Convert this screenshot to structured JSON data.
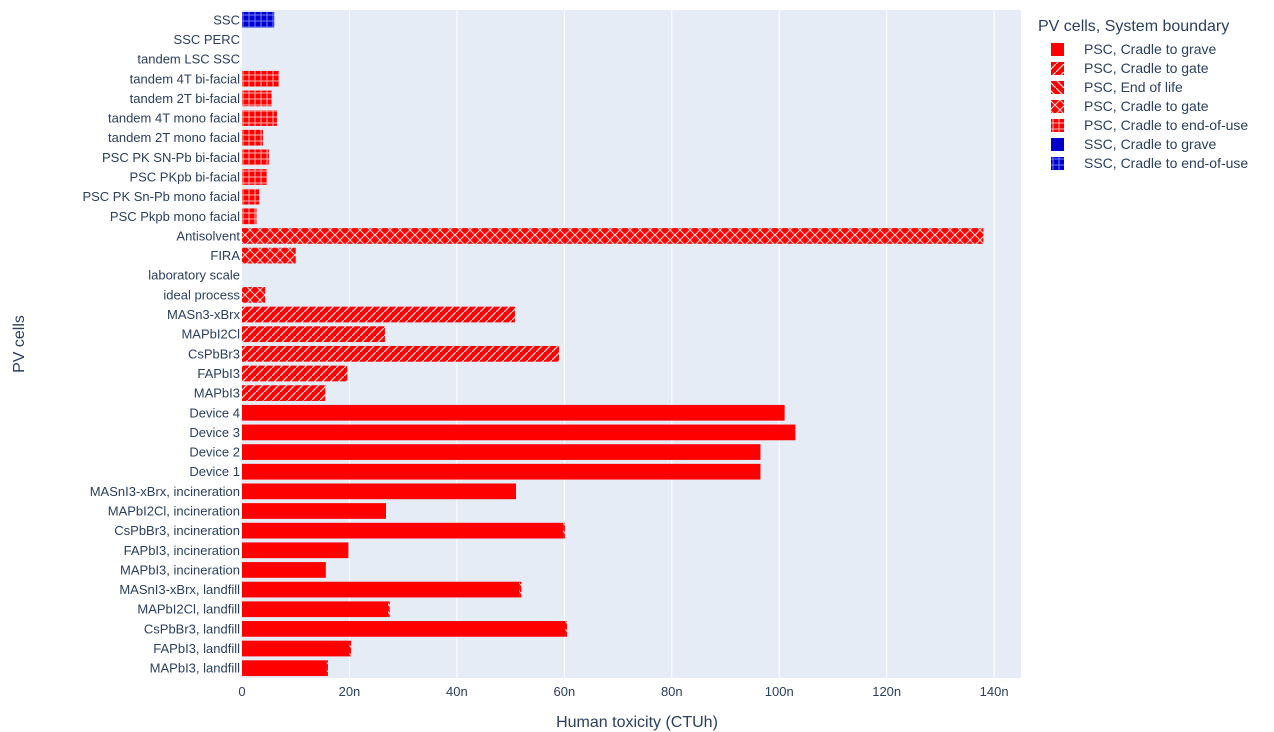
{
  "chart_data": {
    "type": "bar",
    "orientation": "horizontal",
    "xlabel": "Human toxicity (CTUh)",
    "ylabel": "PV cells",
    "xlim": [
      0,
      145
    ],
    "x_ticks": [
      0,
      20,
      40,
      60,
      80,
      100,
      120,
      140
    ],
    "x_tick_labels": [
      "0",
      "20n",
      "40n",
      "60n",
      "80n",
      "100n",
      "120n",
      "140n"
    ],
    "grid": true,
    "legend_position": "right",
    "legend_title": "PV cells, System boundary",
    "categories": [
      "SSC",
      "SSC PERC",
      "tandem LSC SSC",
      "tandem 4T bi-facial",
      "tandem 2T bi-facial",
      "tandem 4T mono facial",
      "tandem 2T mono facial",
      "PSC PK SN-Pb bi-facial",
      "PSC PKpb bi-facial",
      "PSC PK Sn-Pb mono facial",
      "PSC Pkpb mono facial",
      "Antisolvent",
      "FIRA",
      "laboratory scale",
      "ideal process",
      "MASn3-xBrx",
      "MAPbI2Cl",
      "CsPbBr3",
      "FAPbI3",
      "MAPbI3",
      "Device 4",
      "Device 3",
      "Device 2",
      "Device 1",
      "MASnI3-xBrx, incineration",
      "MAPbI2Cl, incineration",
      "CsPbBr3, incineration",
      "FAPbI3, incineration",
      "MAPbI3, incineration",
      "MASnI3-xBrx, landfill",
      "MAPbI2Cl, landfill",
      "CsPbBr3, landfill",
      "FAPbI3, landfill",
      "MAPbI3, landfill"
    ],
    "series": [
      {
        "name": "PSC, Cradle to grave",
        "color": "#ff0000",
        "pattern": "solid",
        "points": [
          [
            "Device 4",
            101
          ],
          [
            "Device 3",
            103
          ],
          [
            "Device 2",
            96.5
          ],
          [
            "Device 1",
            96.5
          ],
          [
            "MASnI3-xBrx, incineration",
            51
          ],
          [
            "MAPbI2Cl, incineration",
            26.8
          ],
          [
            "CsPbBr3, incineration",
            59.8
          ],
          [
            "FAPbI3, incineration",
            19.8
          ],
          [
            "MAPbI3, incineration",
            15.6
          ],
          [
            "MASnI3-xBrx, landfill",
            51.6
          ],
          [
            "MAPbI2Cl, landfill",
            27.2
          ],
          [
            "CsPbBr3, landfill",
            60.2
          ],
          [
            "FAPbI3, landfill",
            20
          ],
          [
            "MAPbI3, landfill",
            15.8
          ]
        ]
      },
      {
        "name": "PSC, Cradle to gate",
        "color": "#ff0000",
        "pattern": "slash",
        "points": [
          [
            "MASn3-xBrx",
            50.8
          ],
          [
            "MAPbI2Cl",
            26.6
          ],
          [
            "CsPbBr3",
            59
          ],
          [
            "FAPbI3",
            19.6
          ],
          [
            "MAPbI3",
            15.5
          ]
        ]
      },
      {
        "name": "PSC, End of life",
        "color": "#ff0000",
        "pattern": "backslash",
        "points": [
          [
            "MASnI3-xBrx, landfill",
            0.4
          ],
          [
            "MAPbI2Cl, landfill",
            0.3
          ],
          [
            "CsPbBr3, landfill",
            0.3
          ],
          [
            "FAPbI3, landfill",
            0.3
          ],
          [
            "MAPbI3, landfill",
            0.2
          ],
          [
            "CsPbBr3, incineration",
            0.3
          ]
        ]
      },
      {
        "name": "PSC, Cradle to gate",
        "color": "#ff0000",
        "pattern": "cross",
        "points": [
          [
            "Antisolvent",
            138
          ],
          [
            "FIRA",
            10
          ],
          [
            "laboratory scale",
            0
          ],
          [
            "ideal process",
            4.3
          ]
        ]
      },
      {
        "name": "PSC, Cradle to end-of-use",
        "color": "#ff0000",
        "pattern": "grid",
        "points": [
          [
            "tandem 4T bi-facial",
            6.9
          ],
          [
            "tandem 2T bi-facial",
            5.5
          ],
          [
            "tandem 4T mono facial",
            6.5
          ],
          [
            "tandem 2T mono facial",
            3.9
          ],
          [
            "PSC PK SN-Pb bi-facial",
            5
          ],
          [
            "PSC PKpb bi-facial",
            4.7
          ],
          [
            "PSC PK Sn-Pb mono facial",
            3.2
          ],
          [
            "PSC Pkpb mono facial",
            2.7
          ]
        ]
      },
      {
        "name": "SSC, Cradle to grave",
        "color": "#0000cc",
        "pattern": "solid",
        "points": []
      },
      {
        "name": "SSC, Cradle to end-of-use",
        "color": "#0000cc",
        "pattern": "grid",
        "points": [
          [
            "SSC",
            6
          ]
        ]
      }
    ]
  }
}
